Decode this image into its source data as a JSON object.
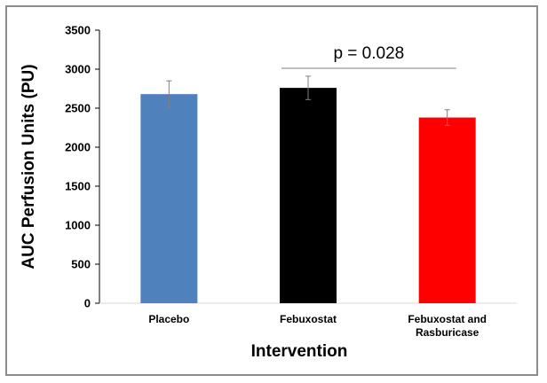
{
  "chart_data": {
    "type": "bar",
    "categories": [
      "Placebo",
      "Febuxostat",
      "Febuxostat and Rasburicase"
    ],
    "category_lines": [
      [
        "Placebo"
      ],
      [
        "Febuxostat"
      ],
      [
        "Febuxostat and",
        "Rasburicase"
      ]
    ],
    "values": [
      2680,
      2760,
      2380
    ],
    "error": [
      170,
      150,
      100
    ],
    "colors": [
      "#4f81bd",
      "#000000",
      "#ff0000"
    ],
    "xlabel": "Intervention",
    "ylabel": "AUC Perfusion Units (PU)",
    "ylim": [
      0,
      3500
    ],
    "yticks": [
      0,
      500,
      1000,
      1500,
      2000,
      2500,
      3000,
      3500
    ],
    "grid": false,
    "annotations": [
      {
        "text": "p = 0.028",
        "from_category": 1,
        "to_category": 2
      }
    ]
  }
}
